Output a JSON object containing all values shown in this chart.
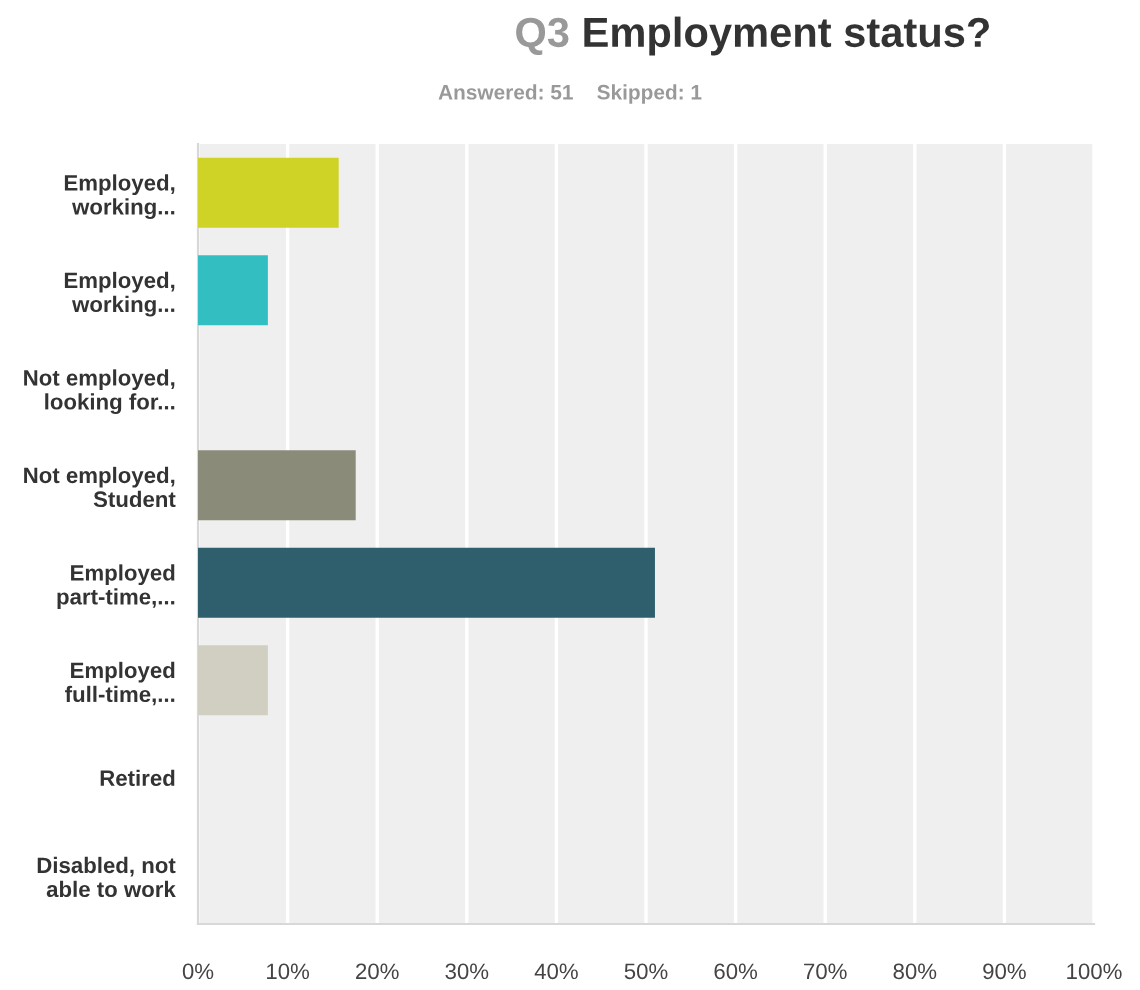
{
  "chart_data": {
    "type": "bar",
    "orientation": "horizontal",
    "title": "Q3 Employment status?",
    "subtitle": "Answered: 51    Skipped: 1",
    "categories": [
      "Employed,\nworking...",
      "Employed,\nworking...",
      "Not employed,\nlooking for...",
      "Not employed,\nStudent",
      "Employed\npart-time,...",
      "Employed\nfull-time,...",
      "Retired",
      "Disabled, not\nable to work"
    ],
    "values": [
      15.7,
      7.8,
      0,
      17.6,
      51,
      7.8,
      0,
      0
    ],
    "colors": [
      "#cfd325",
      "#33bfc1",
      "#8b8b7a",
      "#8b8b7a",
      "#2f5f6d",
      "#d0cfc2",
      "#8b8b7a",
      "#8b8b7a"
    ],
    "xlim": [
      0,
      100
    ],
    "xticks": [
      {
        "value": 0,
        "label": "0%"
      },
      {
        "value": 10,
        "label": "10%"
      },
      {
        "value": 20,
        "label": "20%"
      },
      {
        "value": 30,
        "label": "30%"
      },
      {
        "value": 40,
        "label": "40%"
      },
      {
        "value": 50,
        "label": "50%"
      },
      {
        "value": 60,
        "label": "60%"
      },
      {
        "value": 70,
        "label": "70%"
      },
      {
        "value": 80,
        "label": "80%"
      },
      {
        "value": 90,
        "label": "90%"
      },
      {
        "value": 100,
        "label": "100%"
      }
    ],
    "grid": "x",
    "legend": false
  }
}
